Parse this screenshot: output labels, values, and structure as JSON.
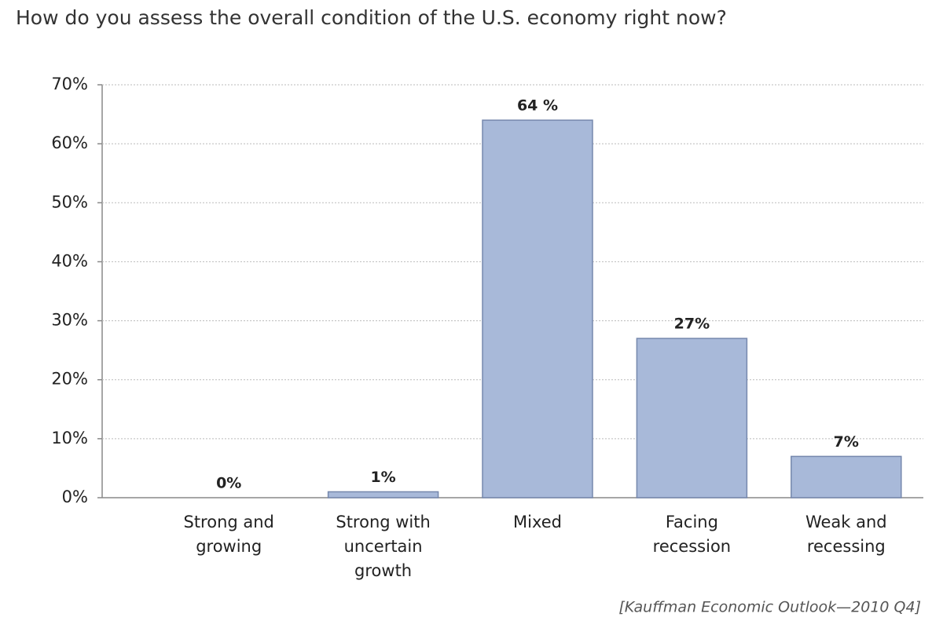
{
  "chart_data": {
    "type": "bar",
    "title": "How do you assess the overall condition of the U.S. economy right now?",
    "categories": [
      "Strong and growing",
      "Strong with uncertain growth",
      "Mixed",
      "Facing recession",
      "Weak and recessing"
    ],
    "values": [
      0,
      1,
      64,
      27,
      7
    ],
    "value_labels": [
      "0%",
      "1%",
      "64 %",
      "27%",
      "7%"
    ],
    "color": "#a8b9d9",
    "ylim": [
      0,
      70
    ],
    "yticks": [
      {
        "value": 0,
        "label": "0%"
      },
      {
        "value": 10,
        "label": "10%"
      },
      {
        "value": 20,
        "label": "20%"
      },
      {
        "value": 30,
        "label": "30%"
      },
      {
        "value": 40,
        "label": "40%"
      },
      {
        "value": 50,
        "label": "50%"
      },
      {
        "value": 60,
        "label": "60%"
      },
      {
        "value": 70,
        "label": "70%"
      }
    ],
    "grid": true,
    "source": "[Kauffman Economic Outlook—2010 Q4]"
  }
}
